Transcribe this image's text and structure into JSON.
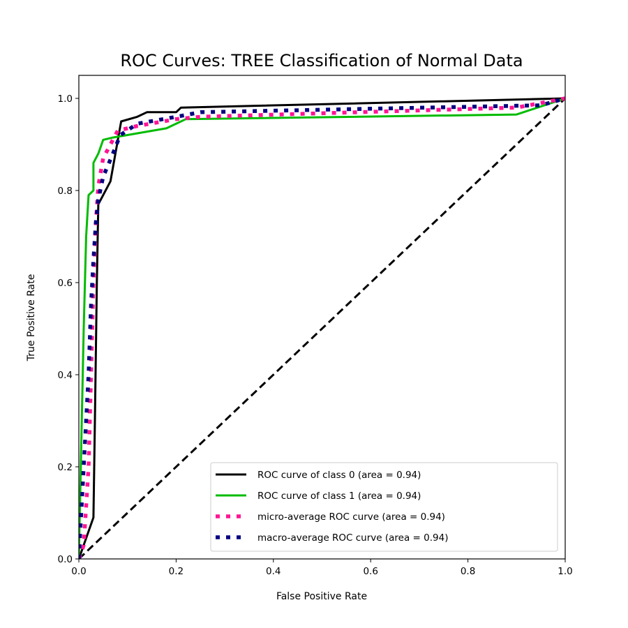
{
  "chart_data": {
    "type": "line",
    "title": "ROC Curves: TREE Classification of Normal Data",
    "xlabel": "False Positive Rate",
    "ylabel": "True Positive Rate",
    "xlim": [
      0.0,
      1.0
    ],
    "ylim": [
      0.0,
      1.05
    ],
    "xticks": [
      0.0,
      0.2,
      0.4,
      0.6,
      0.8,
      1.0
    ],
    "yticks": [
      0.0,
      0.2,
      0.4,
      0.6,
      0.8,
      1.0
    ],
    "xtick_labels": [
      "0.0",
      "0.2",
      "0.4",
      "0.6",
      "0.8",
      "1.0"
    ],
    "ytick_labels": [
      "0.0",
      "0.2",
      "0.4",
      "0.6",
      "0.8",
      "1.0"
    ],
    "grid": false,
    "legend_position": "lower-right",
    "series": [
      {
        "name": "ROC curve of class 0 (area = 0.94)",
        "color": "#000000",
        "style": "solid",
        "x": [
          0.0,
          0.02,
          0.03,
          0.033,
          0.037,
          0.04,
          0.065,
          0.087,
          0.12,
          0.14,
          0.19,
          0.2,
          0.21,
          1.0
        ],
        "y": [
          0.0,
          0.06,
          0.09,
          0.3,
          0.6,
          0.77,
          0.82,
          0.95,
          0.96,
          0.97,
          0.97,
          0.97,
          0.98,
          1.0
        ]
      },
      {
        "name": "ROC curve of class 1 (area = 0.94)",
        "color": "#00bb00",
        "style": "solid",
        "x": [
          0.0,
          0.005,
          0.01,
          0.015,
          0.02,
          0.03,
          0.03,
          0.04,
          0.05,
          0.07,
          0.18,
          0.22,
          0.9,
          1.0
        ],
        "y": [
          0.0,
          0.25,
          0.5,
          0.7,
          0.79,
          0.8,
          0.86,
          0.88,
          0.91,
          0.915,
          0.935,
          0.955,
          0.965,
          1.0
        ]
      },
      {
        "name": "micro-average ROC curve (area = 0.94)",
        "color": "#ff1493",
        "style": "dotted",
        "x": [
          0.0,
          0.01,
          0.02,
          0.025,
          0.03,
          0.035,
          0.04,
          0.05,
          0.065,
          0.08,
          0.12,
          0.2,
          0.25,
          0.9,
          1.0
        ],
        "y": [
          0.0,
          0.03,
          0.2,
          0.4,
          0.6,
          0.73,
          0.81,
          0.87,
          0.9,
          0.93,
          0.94,
          0.955,
          0.96,
          0.98,
          1.0
        ]
      },
      {
        "name": "macro-average ROC curve (area = 0.94)",
        "color": "#000080",
        "style": "dotted",
        "x": [
          0.0,
          0.005,
          0.01,
          0.02,
          0.025,
          0.03,
          0.035,
          0.04,
          0.05,
          0.07,
          0.085,
          0.12,
          0.2,
          0.25,
          0.95,
          1.0
        ],
        "y": [
          0.0,
          0.1,
          0.2,
          0.4,
          0.55,
          0.65,
          0.73,
          0.78,
          0.83,
          0.88,
          0.92,
          0.945,
          0.96,
          0.97,
          0.985,
          1.0
        ]
      }
    ],
    "reference_line": {
      "color": "#000000",
      "style": "dashed",
      "x": [
        0.0,
        1.0
      ],
      "y": [
        0.0,
        1.0
      ]
    }
  }
}
